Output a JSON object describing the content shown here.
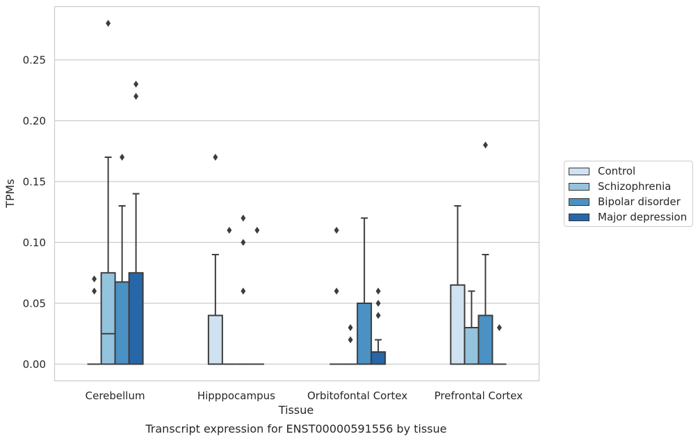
{
  "chart_data": {
    "type": "box",
    "title": "",
    "caption": "Transcript expression for ENST00000591556 by tissue",
    "xlabel": "Tissue",
    "ylabel": "TPMs",
    "ylim": [
      -0.013,
      0.295
    ],
    "yticks": [
      "0.00",
      "0.05",
      "0.10",
      "0.15",
      "0.20",
      "0.25"
    ],
    "ytick_values": [
      0.0,
      0.05,
      0.1,
      0.15,
      0.2,
      0.25
    ],
    "grid": "horizontal",
    "legend_position": "right",
    "categories": [
      "Cerebellum",
      "Hipppocampus",
      "Orbitofontal Cortex",
      "Prefrontal Cortex"
    ],
    "series": [
      {
        "name": "Control",
        "color": "#d0e1f1",
        "boxes": [
          {
            "q1": 0,
            "median": 0,
            "q3": 0,
            "whisker_low": 0,
            "whisker_high": 0,
            "outliers": [
              0.06,
              0.07
            ]
          },
          {
            "q1": 0,
            "median": 0,
            "q3": 0.04,
            "whisker_low": 0,
            "whisker_high": 0.09,
            "outliers": [
              0.17
            ]
          },
          {
            "q1": 0,
            "median": 0,
            "q3": 0,
            "whisker_low": 0,
            "whisker_high": 0,
            "outliers": [
              0.06,
              0.11
            ]
          },
          {
            "q1": 0,
            "median": 0,
            "q3": 0.065,
            "whisker_low": 0,
            "whisker_high": 0.13,
            "outliers": []
          }
        ]
      },
      {
        "name": "Schizophrenia",
        "color": "#94c3de",
        "boxes": [
          {
            "q1": 0,
            "median": 0.025,
            "q3": 0.075,
            "whisker_low": 0,
            "whisker_high": 0.17,
            "outliers": [
              0.28
            ]
          },
          {
            "q1": 0,
            "median": 0,
            "q3": 0,
            "whisker_low": 0,
            "whisker_high": 0,
            "outliers": [
              0.11
            ]
          },
          {
            "q1": 0,
            "median": 0,
            "q3": 0,
            "whisker_low": 0,
            "whisker_high": 0,
            "outliers": [
              0.02,
              0.03
            ]
          },
          {
            "q1": 0,
            "median": 0,
            "q3": 0.03,
            "whisker_low": 0,
            "whisker_high": 0.06,
            "outliers": []
          }
        ]
      },
      {
        "name": "Bipolar disorder",
        "color": "#4b91c4",
        "boxes": [
          {
            "q1": 0,
            "median": 0,
            "q3": 0.0675,
            "whisker_low": 0,
            "whisker_high": 0.13,
            "outliers": [
              0.17
            ]
          },
          {
            "q1": 0,
            "median": 0,
            "q3": 0,
            "whisker_low": 0,
            "whisker_high": 0,
            "outliers": [
              0.06,
              0.1,
              0.12
            ]
          },
          {
            "q1": 0,
            "median": 0,
            "q3": 0.05,
            "whisker_low": 0,
            "whisker_high": 0.12,
            "outliers": []
          },
          {
            "q1": 0,
            "median": 0,
            "q3": 0.04,
            "whisker_low": 0,
            "whisker_high": 0.09,
            "outliers": [
              0.18
            ]
          }
        ]
      },
      {
        "name": "Major depression",
        "color": "#2767a9",
        "boxes": [
          {
            "q1": 0,
            "median": 0,
            "q3": 0.075,
            "whisker_low": 0,
            "whisker_high": 0.14,
            "outliers": [
              0.22,
              0.23
            ]
          },
          {
            "q1": 0,
            "median": 0,
            "q3": 0,
            "whisker_low": 0,
            "whisker_high": 0,
            "outliers": [
              0.11
            ]
          },
          {
            "q1": 0,
            "median": 0,
            "q3": 0.01,
            "whisker_low": 0,
            "whisker_high": 0.02,
            "outliers": [
              0.04,
              0.05,
              0.06
            ]
          },
          {
            "q1": 0,
            "median": 0,
            "q3": 0,
            "whisker_low": 0,
            "whisker_high": 0,
            "outliers": [
              0.03
            ]
          }
        ]
      }
    ]
  }
}
